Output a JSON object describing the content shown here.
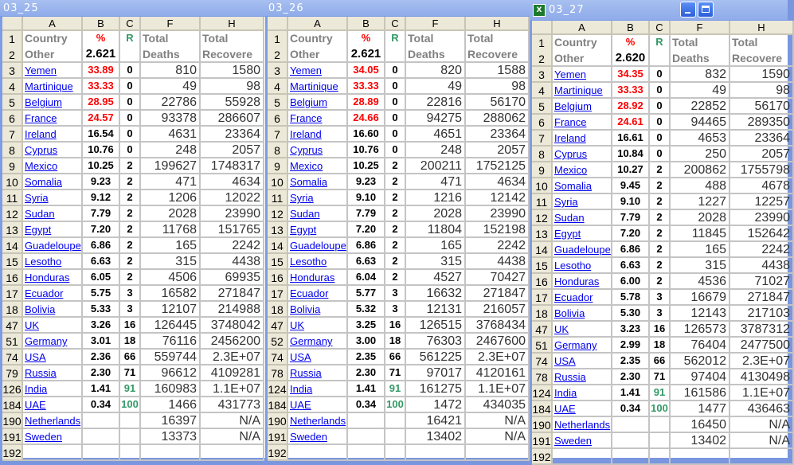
{
  "colors": {
    "highlight_red": "#ff0000",
    "highlight_green": "#339966",
    "link_blue": "#0000ee",
    "header_gray": "#808080"
  },
  "columns": [
    "A",
    "B",
    "C",
    "F",
    "H"
  ],
  "headers": {
    "country_1": "Country",
    "country_2": "Other",
    "pct": "%",
    "r": "R",
    "deaths_1": "Total",
    "deaths_2": "Deaths",
    "recovered_1": "Total",
    "recovered_2": "Recovere"
  },
  "windows": [
    {
      "title": "03_25",
      "active": false,
      "b2": "2.621",
      "red_rows": 4,
      "rows": [
        [
          "3",
          "Yemen",
          "33.89",
          "0",
          "810",
          "1580"
        ],
        [
          "4",
          "Martinique",
          "33.33",
          "0",
          "49",
          "98"
        ],
        [
          "5",
          "Belgium",
          "28.95",
          "0",
          "22786",
          "55928"
        ],
        [
          "6",
          "France",
          "24.57",
          "0",
          "93378",
          "286607"
        ],
        [
          "7",
          "Ireland",
          "16.54",
          "0",
          "4631",
          "23364"
        ],
        [
          "8",
          "Cyprus",
          "10.76",
          "0",
          "248",
          "2057"
        ],
        [
          "9",
          "Mexico",
          "10.25",
          "2",
          "199627",
          "1748317"
        ],
        [
          "10",
          "Somalia",
          "9.23",
          "2",
          "471",
          "4634"
        ],
        [
          "11",
          "Syria",
          "9.12",
          "2",
          "1206",
          "12022"
        ],
        [
          "12",
          "Sudan",
          "7.79",
          "2",
          "2028",
          "23990"
        ],
        [
          "13",
          "Egypt",
          "7.20",
          "2",
          "11768",
          "151765"
        ],
        [
          "14",
          "Guadeloupe",
          "6.86",
          "2",
          "165",
          "2242"
        ],
        [
          "15",
          "Lesotho",
          "6.63",
          "2",
          "315",
          "4438"
        ],
        [
          "16",
          "Honduras",
          "6.05",
          "2",
          "4506",
          "69935"
        ],
        [
          "17",
          "Ecuador",
          "5.75",
          "3",
          "16582",
          "271847"
        ],
        [
          "18",
          "Bolivia",
          "5.33",
          "3",
          "12107",
          "214988"
        ],
        [
          "47",
          "UK",
          "3.26",
          "16",
          "126445",
          "3748042"
        ],
        [
          "51",
          "Germany",
          "3.01",
          "18",
          "76116",
          "2456200"
        ],
        [
          "74",
          "USA",
          "2.36",
          "66",
          "559744",
          "2.3E+07"
        ],
        [
          "79",
          "Russia",
          "2.30",
          "71",
          "96612",
          "4109281"
        ],
        [
          "126",
          "India",
          "1.41",
          "91",
          "160983",
          "1.1E+07"
        ],
        [
          "184",
          "UAE",
          "0.34",
          "100",
          "1466",
          "431773"
        ],
        [
          "190",
          "Netherlands",
          "",
          "",
          "16397",
          "N/A"
        ],
        [
          "191",
          "Sweden",
          "",
          "",
          "13373",
          "N/A"
        ],
        [
          "192",
          "",
          "",
          "",
          "",
          ""
        ]
      ]
    },
    {
      "title": "03_26",
      "active": false,
      "b2": "2.621",
      "red_rows": 4,
      "rows": [
        [
          "3",
          "Yemen",
          "34.05",
          "0",
          "820",
          "1588"
        ],
        [
          "4",
          "Martinique",
          "33.33",
          "0",
          "49",
          "98"
        ],
        [
          "5",
          "Belgium",
          "28.89",
          "0",
          "22816",
          "56170"
        ],
        [
          "6",
          "France",
          "24.66",
          "0",
          "94275",
          "288062"
        ],
        [
          "7",
          "Ireland",
          "16.60",
          "0",
          "4651",
          "23364"
        ],
        [
          "8",
          "Cyprus",
          "10.76",
          "0",
          "248",
          "2057"
        ],
        [
          "9",
          "Mexico",
          "10.25",
          "2",
          "200211",
          "1752125"
        ],
        [
          "10",
          "Somalia",
          "9.23",
          "2",
          "471",
          "4634"
        ],
        [
          "11",
          "Syria",
          "9.10",
          "2",
          "1216",
          "12142"
        ],
        [
          "12",
          "Sudan",
          "7.79",
          "2",
          "2028",
          "23990"
        ],
        [
          "13",
          "Egypt",
          "7.20",
          "2",
          "11804",
          "152198"
        ],
        [
          "14",
          "Guadeloupe",
          "6.86",
          "2",
          "165",
          "2242"
        ],
        [
          "15",
          "Lesotho",
          "6.63",
          "2",
          "315",
          "4438"
        ],
        [
          "16",
          "Honduras",
          "6.04",
          "2",
          "4527",
          "70427"
        ],
        [
          "17",
          "Ecuador",
          "5.77",
          "3",
          "16632",
          "271847"
        ],
        [
          "18",
          "Bolivia",
          "5.32",
          "3",
          "12131",
          "216057"
        ],
        [
          "47",
          "UK",
          "3.25",
          "16",
          "126515",
          "3768434"
        ],
        [
          "52",
          "Germany",
          "3.00",
          "18",
          "76303",
          "2467600"
        ],
        [
          "74",
          "USA",
          "2.35",
          "66",
          "561225",
          "2.3E+07"
        ],
        [
          "78",
          "Russia",
          "2.30",
          "71",
          "97017",
          "4120161"
        ],
        [
          "124",
          "India",
          "1.41",
          "91",
          "161275",
          "1.1E+07"
        ],
        [
          "184",
          "UAE",
          "0.34",
          "100",
          "1472",
          "434035"
        ],
        [
          "190",
          "Netherlands",
          "",
          "",
          "16421",
          "N/A"
        ],
        [
          "191",
          "Sweden",
          "",
          "",
          "13402",
          "N/A"
        ],
        [
          "192",
          "",
          "",
          "",
          "",
          ""
        ]
      ]
    },
    {
      "title": "03_27",
      "active": true,
      "icon": "excel-icon",
      "b2": "2.620",
      "red_rows": 4,
      "rows": [
        [
          "3",
          "Yemen",
          "34.35",
          "0",
          "832",
          "1590"
        ],
        [
          "4",
          "Martinique",
          "33.33",
          "0",
          "49",
          "98"
        ],
        [
          "5",
          "Belgium",
          "28.92",
          "0",
          "22852",
          "56170"
        ],
        [
          "6",
          "France",
          "24.61",
          "0",
          "94465",
          "289350"
        ],
        [
          "7",
          "Ireland",
          "16.61",
          "0",
          "4653",
          "23364"
        ],
        [
          "8",
          "Cyprus",
          "10.84",
          "0",
          "250",
          "2057"
        ],
        [
          "9",
          "Mexico",
          "10.27",
          "2",
          "200862",
          "1755798"
        ],
        [
          "10",
          "Somalia",
          "9.45",
          "2",
          "488",
          "4678"
        ],
        [
          "11",
          "Syria",
          "9.10",
          "2",
          "1227",
          "12257"
        ],
        [
          "12",
          "Sudan",
          "7.79",
          "2",
          "2028",
          "23990"
        ],
        [
          "13",
          "Egypt",
          "7.20",
          "2",
          "11845",
          "152642"
        ],
        [
          "14",
          "Guadeloupe",
          "6.86",
          "2",
          "165",
          "2242"
        ],
        [
          "15",
          "Lesotho",
          "6.63",
          "2",
          "315",
          "4438"
        ],
        [
          "16",
          "Honduras",
          "6.00",
          "2",
          "4536",
          "71027"
        ],
        [
          "17",
          "Ecuador",
          "5.78",
          "3",
          "16679",
          "271847"
        ],
        [
          "18",
          "Bolivia",
          "5.30",
          "3",
          "12143",
          "217103"
        ],
        [
          "47",
          "UK",
          "3.23",
          "16",
          "126573",
          "3787312"
        ],
        [
          "51",
          "Germany",
          "2.99",
          "18",
          "76404",
          "2477500"
        ],
        [
          "74",
          "USA",
          "2.35",
          "66",
          "562012",
          "2.3E+07"
        ],
        [
          "78",
          "Russia",
          "2.30",
          "71",
          "97404",
          "4130498"
        ],
        [
          "124",
          "India",
          "1.41",
          "91",
          "161586",
          "1.1E+07"
        ],
        [
          "184",
          "UAE",
          "0.34",
          "100",
          "1477",
          "436463"
        ],
        [
          "190",
          "Netherlands",
          "",
          "",
          "16450",
          "N/A"
        ],
        [
          "191",
          "Sweden",
          "",
          "",
          "13402",
          "N/A"
        ],
        [
          "192",
          "",
          "",
          "",
          "",
          ""
        ]
      ]
    }
  ]
}
